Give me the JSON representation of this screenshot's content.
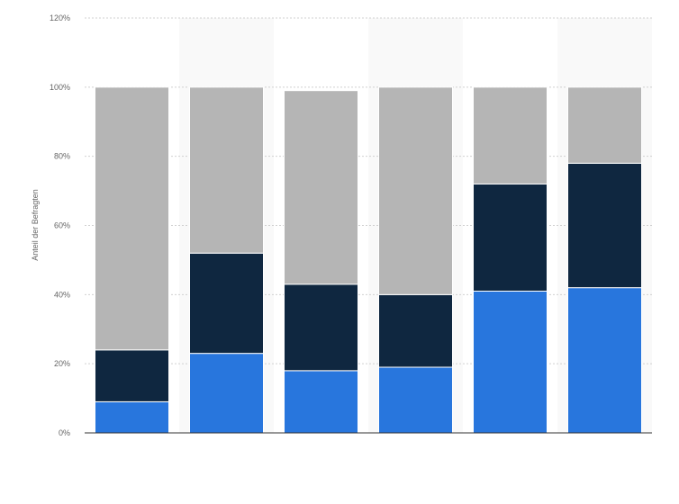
{
  "chart_data": {
    "type": "bar",
    "stacked": true,
    "title": "",
    "xlabel": "",
    "ylabel": "Anteil der Befragten",
    "ylim": [
      0,
      120
    ],
    "y_ticks": [
      "0%",
      "20%",
      "40%",
      "60%",
      "80%",
      "100%",
      "120%"
    ],
    "categories": [
      "",
      "",
      "",
      "",
      "",
      ""
    ],
    "series": [
      {
        "values": [
          9,
          23,
          18,
          19,
          41,
          42
        ],
        "color": "#2876dd"
      },
      {
        "values": [
          15,
          29,
          25,
          21,
          31,
          36
        ],
        "color": "#0f2740"
      },
      {
        "values": [
          76,
          48,
          56,
          60,
          28,
          22
        ],
        "color": "#b5b5b5"
      }
    ],
    "grid": true,
    "legend": "none"
  }
}
